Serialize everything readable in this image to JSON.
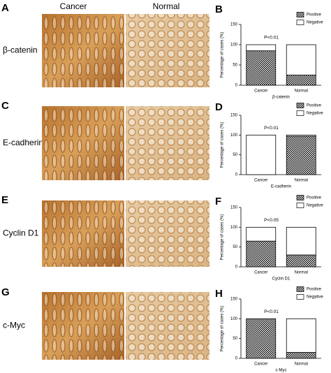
{
  "column_headers": [
    "Cancer",
    "Normal"
  ],
  "image_panels": [
    {
      "letter": "A",
      "label": "β-catenin"
    },
    {
      "letter": "C",
      "label": "E-cadherin"
    },
    {
      "letter": "E",
      "label": "Cyclin D1"
    },
    {
      "letter": "G",
      "label": "c-Myc"
    }
  ],
  "chart_data": [
    {
      "type": "bar",
      "stacked": true,
      "panel_letter": "B",
      "xlabel": "β-catenin",
      "ylabel": "Percentage of cases (%)",
      "categories": [
        "Cancer",
        "Normal"
      ],
      "series": [
        {
          "name": "Positive",
          "color": "#000000",
          "values": [
            85,
            25
          ]
        },
        {
          "name": "Negative",
          "color": "#ffffff",
          "values": [
            15,
            75
          ]
        }
      ],
      "ylim": [
        0,
        150
      ],
      "yticks": [
        0,
        50,
        100,
        150
      ],
      "annotation": "P<0.01",
      "legend": "upper right"
    },
    {
      "type": "bar",
      "stacked": true,
      "panel_letter": "D",
      "xlabel": "E-cadherin",
      "ylabel": "Percentage of cases (%)",
      "categories": [
        "Cancer",
        "Normal"
      ],
      "series": [
        {
          "name": "Positive",
          "color": "#000000",
          "values": [
            0,
            97
          ]
        },
        {
          "name": "Negative",
          "color": "#ffffff",
          "values": [
            100,
            3
          ]
        }
      ],
      "ylim": [
        0,
        150
      ],
      "yticks": [
        0,
        50,
        100,
        150
      ],
      "annotation": "P<0.01",
      "legend": "upper right"
    },
    {
      "type": "bar",
      "stacked": true,
      "panel_letter": "F",
      "xlabel": "Cyclin D1",
      "ylabel": "Percentage of cases (%)",
      "categories": [
        "Cancer",
        "Normal"
      ],
      "series": [
        {
          "name": "Positive",
          "color": "#000000",
          "values": [
            65,
            30
          ]
        },
        {
          "name": "Negative",
          "color": "#ffffff",
          "values": [
            35,
            70
          ]
        }
      ],
      "ylim": [
        0,
        150
      ],
      "yticks": [
        0,
        50,
        100,
        150
      ],
      "annotation": "P<0.05",
      "legend": "upper right"
    },
    {
      "type": "bar",
      "stacked": true,
      "panel_letter": "H",
      "xlabel": "c-Myc",
      "ylabel": "Percentage of cases (%)",
      "categories": [
        "Cancer",
        "Normal"
      ],
      "series": [
        {
          "name": "Positive",
          "color": "#000000",
          "values": [
            100,
            15
          ]
        },
        {
          "name": "Negative",
          "color": "#ffffff",
          "values": [
            0,
            85
          ]
        }
      ],
      "ylim": [
        0,
        150
      ],
      "yticks": [
        0,
        50,
        100,
        150
      ],
      "annotation": "P<0.01",
      "legend": "upper right"
    }
  ]
}
